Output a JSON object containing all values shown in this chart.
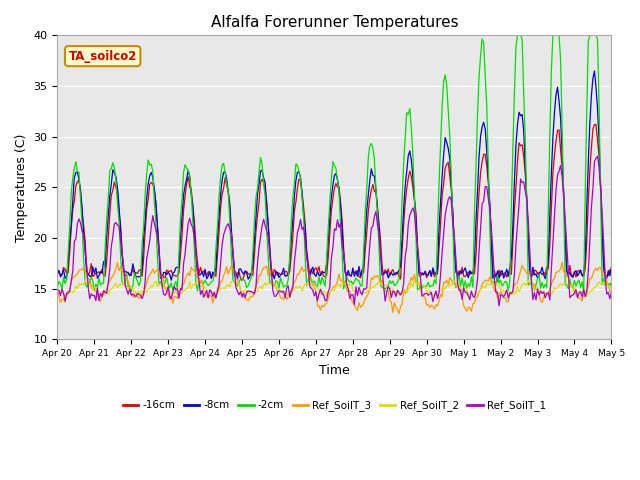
{
  "title": "Alfalfa Forerunner Temperatures",
  "xlabel": "Time",
  "ylabel": "Temperatures (C)",
  "ylim": [
    10,
    40
  ],
  "xlim": [
    0,
    15
  ],
  "annotation_text": "TA_soilco2",
  "annotation_color": "#cc0000",
  "annotation_bg": "#ffffcc",
  "annotation_border": "#cc8800",
  "fig_bg": "#ffffff",
  "plot_bg": "#e8e8e8",
  "series": [
    {
      "label": "-16cm",
      "color": "#dd0000"
    },
    {
      "label": "-8cm",
      "color": "#0000dd"
    },
    {
      "label": "-2cm",
      "color": "#00dd00"
    },
    {
      "label": "Ref_SoilT_3",
      "color": "#ff9900"
    },
    {
      "label": "Ref_SoilT_2",
      "color": "#dddd00"
    },
    {
      "label": "Ref_SoilT_1",
      "color": "#aa00cc"
    }
  ],
  "xtick_labels": [
    "Apr 20",
    "Apr 21",
    "Apr 22",
    "Apr 23",
    "Apr 24",
    "Apr 25",
    "Apr 26",
    "Apr 27",
    "Apr 28",
    "Apr 29",
    "Apr 30",
    "May 1",
    "May 2",
    "May 3",
    "May 4",
    "May 5"
  ],
  "ytick_labels": [
    10,
    15,
    20,
    25,
    30,
    35,
    40
  ],
  "num_points": 361
}
